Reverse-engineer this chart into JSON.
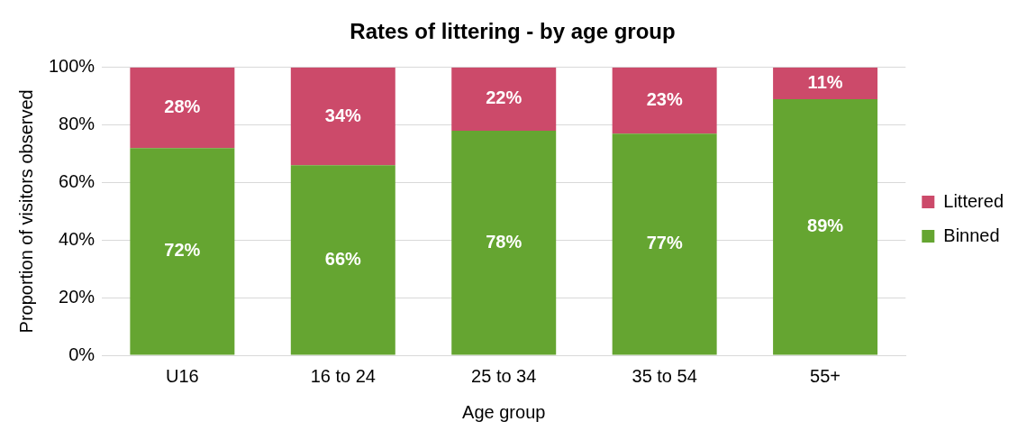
{
  "chart_data": {
    "type": "bar",
    "title": "Rates of littering - by age group",
    "xlabel": "Age group",
    "ylabel": "Proportion of visitors observed",
    "categories": [
      "U16",
      "16 to 24",
      "25 to 34",
      "35 to 54",
      "55+"
    ],
    "series": [
      {
        "name": "Binned",
        "color": "#65a531",
        "values": [
          72,
          66,
          78,
          77,
          89
        ],
        "value_labels": [
          "72%",
          "66%",
          "78%",
          "77%",
          "89%"
        ]
      },
      {
        "name": "Littered",
        "color": "#cc4a6a",
        "values": [
          28,
          34,
          22,
          23,
          11
        ],
        "value_labels": [
          "28%",
          "34%",
          "22%",
          "23%",
          "11%"
        ]
      }
    ],
    "stacked": true,
    "ylim": [
      0,
      100
    ],
    "yticks": [
      {
        "value": 0,
        "label": "0%"
      },
      {
        "value": 20,
        "label": "20%"
      },
      {
        "value": 40,
        "label": "40%"
      },
      {
        "value": 60,
        "label": "60%"
      },
      {
        "value": 80,
        "label": "80%"
      },
      {
        "value": 100,
        "label": "100%"
      }
    ],
    "grid": "y",
    "legend": "right"
  }
}
